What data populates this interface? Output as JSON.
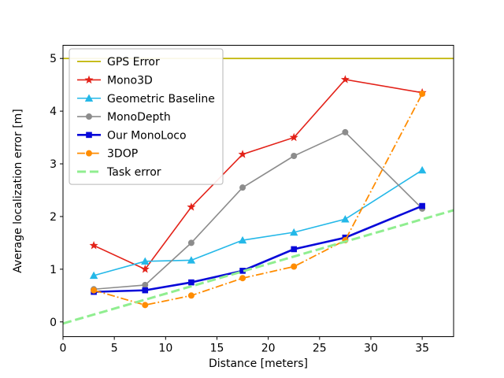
{
  "chart_data": {
    "type": "line",
    "title": "",
    "xlabel": "Distance [meters]",
    "ylabel": "Average localization error [m]",
    "xlim": [
      0,
      38.06
    ],
    "ylim": [
      -0.28,
      5.25
    ],
    "xticks": [
      0,
      5,
      10,
      15,
      20,
      25,
      30,
      35
    ],
    "yticks": [
      0,
      1,
      2,
      3,
      4,
      5
    ],
    "grid": false,
    "legend_position": "upper-left",
    "x": [
      3,
      8,
      12.5,
      17.5,
      22.5,
      27.5,
      35
    ],
    "series": [
      {
        "name": "GPS Error",
        "color": "#bfb400",
        "linestyle": "solid",
        "linewidth": 1.8,
        "marker": "none",
        "x": [
          0,
          38.06
        ],
        "values": [
          5,
          5
        ]
      },
      {
        "name": "Mono3D",
        "color": "#e32219",
        "linestyle": "solid",
        "linewidth": 1.6,
        "marker": "star",
        "values": [
          1.45,
          1.0,
          2.18,
          3.18,
          3.5,
          4.6,
          4.35
        ]
      },
      {
        "name": "Geometric Baseline",
        "color": "#24b8e8",
        "linestyle": "solid",
        "linewidth": 1.6,
        "marker": "triangle",
        "values": [
          0.88,
          1.15,
          1.17,
          1.55,
          1.7,
          1.95,
          2.88
        ]
      },
      {
        "name": "MonoDepth",
        "color": "#8c8c8c",
        "linestyle": "solid",
        "linewidth": 1.6,
        "marker": "circle",
        "values": [
          0.62,
          0.7,
          1.5,
          2.55,
          3.15,
          3.6,
          2.15
        ]
      },
      {
        "name": "Our MonoLoco",
        "color": "#0708d9",
        "linestyle": "solid",
        "linewidth": 2.6,
        "marker": "square",
        "values": [
          0.57,
          0.6,
          0.75,
          0.97,
          1.38,
          1.6,
          2.2
        ]
      },
      {
        "name": "3DOP",
        "color": "#ff8c00",
        "linestyle": "dashdot",
        "linewidth": 1.8,
        "marker": "circle",
        "values": [
          0.6,
          0.32,
          0.5,
          0.83,
          1.05,
          1.55,
          4.33
        ]
      },
      {
        "name": "Task error",
        "color": "#90ee90",
        "linestyle": "dashed",
        "linewidth": 3.0,
        "marker": "none",
        "x": [
          0,
          38.06
        ],
        "values": [
          -0.03,
          2.12
        ]
      }
    ]
  }
}
